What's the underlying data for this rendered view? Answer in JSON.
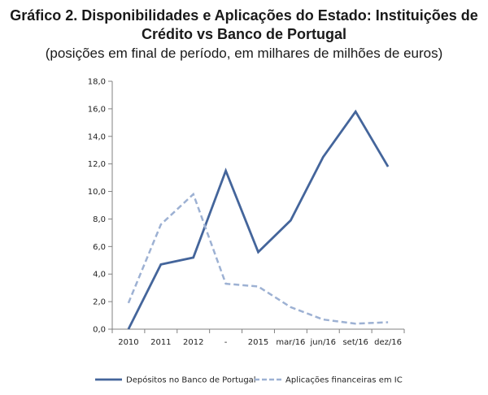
{
  "chart_data": {
    "type": "line",
    "title_line1": "Gráfico 2. Disponibilidades e Aplicações do Estado: Instituições de",
    "title_line2": "Crédito vs Banco de Portugal",
    "subtitle": "(posições em final de período, em milhares de milhões de euros)",
    "categories": [
      "2010",
      "2011",
      "2012",
      "-",
      "2015",
      "mar/16",
      "jun/16",
      "set/16",
      "dez/16"
    ],
    "ylim": [
      0,
      18
    ],
    "ytick_labels": [
      "0,0",
      "2,0",
      "4,0",
      "6,0",
      "8,0",
      "10,0",
      "12,0",
      "14,0",
      "16,0",
      "18,0"
    ],
    "grid": false,
    "legend_position": "bottom",
    "series": [
      {
        "name": "Depósitos no Banco de Portugal",
        "style": "solid",
        "color": "#44659B",
        "values": [
          0.0,
          4.7,
          5.2,
          11.5,
          5.6,
          7.9,
          12.5,
          15.8,
          11.8
        ]
      },
      {
        "name": "Aplicações financeiras em IC",
        "style": "dashed",
        "color": "#9DB1D3",
        "values": [
          1.9,
          7.6,
          9.8,
          3.3,
          3.1,
          1.6,
          0.7,
          0.4,
          0.5
        ]
      }
    ]
  }
}
